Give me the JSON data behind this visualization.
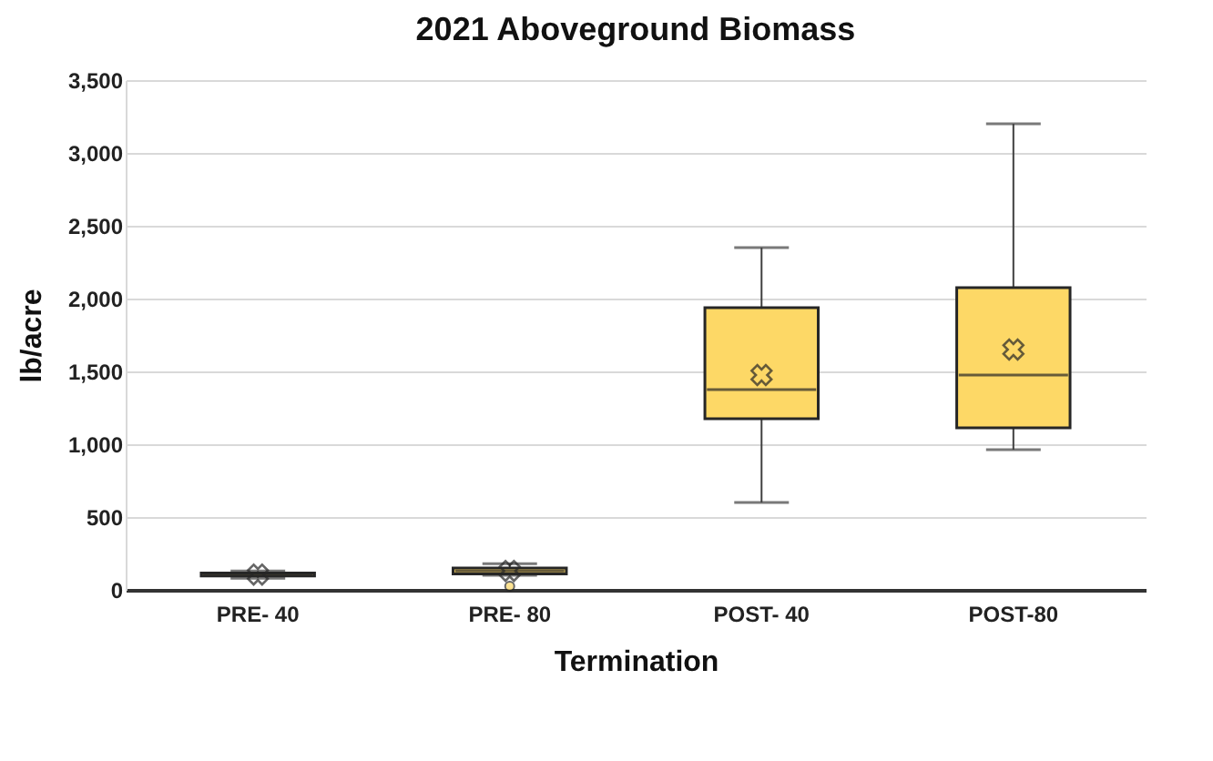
{
  "chart_data": {
    "type": "box",
    "title": "2021 Aboveground Biomass",
    "xlabel": "Termination",
    "ylabel": "lb/acre",
    "categories": [
      "PRE- 40",
      "PRE- 80",
      "POST- 40",
      "POST-80"
    ],
    "series": [
      {
        "color": "#fdd866",
        "boxes": [
          {
            "low": 80,
            "q1": 95,
            "median": 105,
            "q3": 115,
            "high": 130,
            "mean": 105
          },
          {
            "low": 100,
            "q1": 110,
            "median": 130,
            "q3": 150,
            "high": 180,
            "mean": 130,
            "outliers": [
              25
            ]
          },
          {
            "low": 600,
            "q1": 1175,
            "median": 1375,
            "q3": 1937,
            "high": 2350,
            "mean": 1475
          },
          {
            "low": 962,
            "q1": 1112,
            "median": 1475,
            "q3": 2075,
            "high": 3200,
            "mean": 1650
          }
        ]
      }
    ],
    "ylim": [
      0,
      3500
    ],
    "yticks": [
      0,
      500,
      {
        "value": 1000,
        "label": "1,000"
      },
      {
        "value": 1500,
        "label": "1,500"
      },
      {
        "value": 2000,
        "label": "2,000"
      },
      {
        "value": 2500,
        "label": "2,500"
      },
      {
        "value": 3000,
        "label": "3,000"
      },
      {
        "value": 3500,
        "label": "3,500"
      }
    ],
    "grid": "y"
  }
}
